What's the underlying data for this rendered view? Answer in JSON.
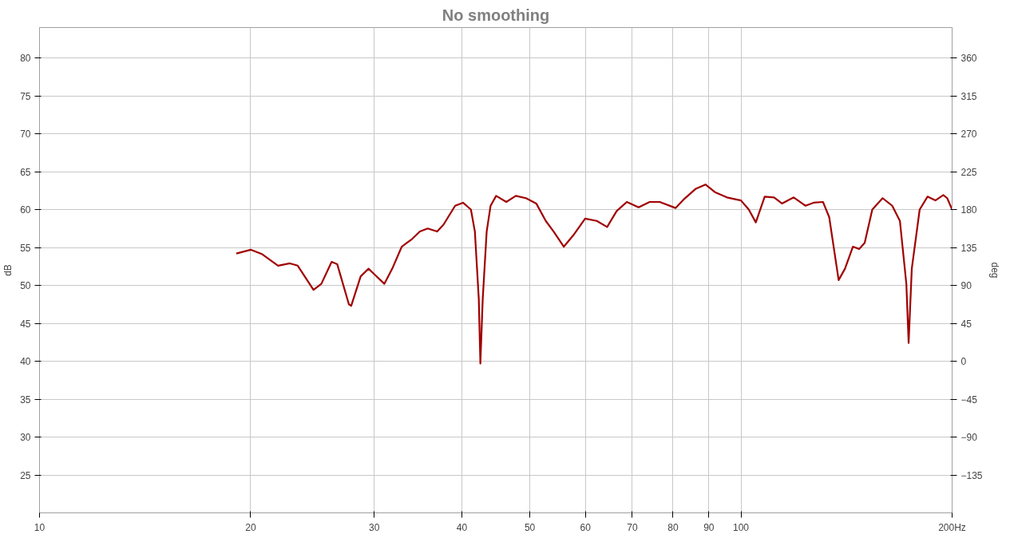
{
  "chart_data": {
    "type": "line",
    "title": "No smoothing",
    "ylabel": "dB",
    "y2label": "deg",
    "log": "x",
    "grid": true,
    "marker": "none",
    "line_style": "solid",
    "xlim": [
      10,
      200
    ],
    "xticks": [
      10,
      20,
      30,
      40,
      50,
      60,
      70,
      80,
      90,
      100,
      {
        "value": 200,
        "label": "200Hz"
      }
    ],
    "ylim": [
      20,
      84
    ],
    "yticks": [
      25,
      30,
      35,
      40,
      45,
      50,
      55,
      60,
      65,
      70,
      75,
      80
    ],
    "y2lim": [
      -180,
      396
    ],
    "y2ticks": [
      -135,
      -90,
      -45,
      0,
      45,
      90,
      135,
      180,
      225,
      270,
      315,
      360
    ],
    "series": [
      {
        "color": "#a00000",
        "x": [
          19.08,
          20,
          20.78,
          21.88,
          22.75,
          23.34,
          24.58,
          25.22,
          26.09,
          26.57,
          27.61,
          27.82,
          28.7,
          29.45,
          30.07,
          31.02,
          31.83,
          32.84,
          33.96,
          34.85,
          35.76,
          36.89,
          37.66,
          39.13,
          40.16,
          41.21,
          41.75,
          42.29,
          42.51,
          42.84,
          43.4,
          43.96,
          44.77,
          46.29,
          47.75,
          49.38,
          51.07,
          52.69,
          54.07,
          55.91,
          57.67,
          59.96,
          62.3,
          64.45,
          66.5,
          68.75,
          71.46,
          74.1,
          76.6,
          80.7,
          82.8,
          86.1,
          89.0,
          91.8,
          95.5,
          100,
          102.6,
          105.0,
          108.1,
          111.5,
          114.4,
          118.9,
          123.6,
          126.9,
          130.9,
          133.6,
          137.8,
          140.7,
          144.4,
          147.4,
          150.1,
          153.9,
          159.2,
          164.3,
          168.5,
          172.1,
          173.4,
          175.2,
          179.8,
          184.5,
          189.3,
          194.3,
          196.8,
          200
        ],
        "values": [
          54.2,
          54.7,
          54.1,
          52.6,
          52.9,
          52.6,
          49.4,
          50.2,
          53.1,
          52.8,
          47.5,
          47.3,
          51.2,
          52.2,
          51.4,
          50.2,
          52.2,
          55.1,
          56.1,
          57.1,
          57.5,
          57.1,
          58.0,
          60.5,
          60.9,
          60.0,
          57.1,
          48.2,
          39.7,
          48.2,
          57.1,
          60.5,
          61.8,
          61.0,
          61.8,
          61.5,
          60.8,
          58.5,
          57.1,
          55.1,
          56.6,
          58.8,
          58.5,
          57.7,
          59.8,
          61.0,
          60.3,
          61.0,
          61.0,
          60.2,
          61.3,
          62.7,
          63.3,
          62.3,
          61.6,
          61.2,
          60.0,
          58.3,
          61.7,
          61.6,
          60.8,
          61.6,
          60.5,
          60.9,
          61.0,
          59.0,
          50.7,
          52.2,
          55.1,
          54.8,
          55.6,
          60.0,
          61.5,
          60.5,
          58.5,
          50.2,
          42.4,
          52.2,
          60.0,
          61.7,
          61.2,
          61.9,
          61.5,
          60.0
        ]
      }
    ]
  }
}
